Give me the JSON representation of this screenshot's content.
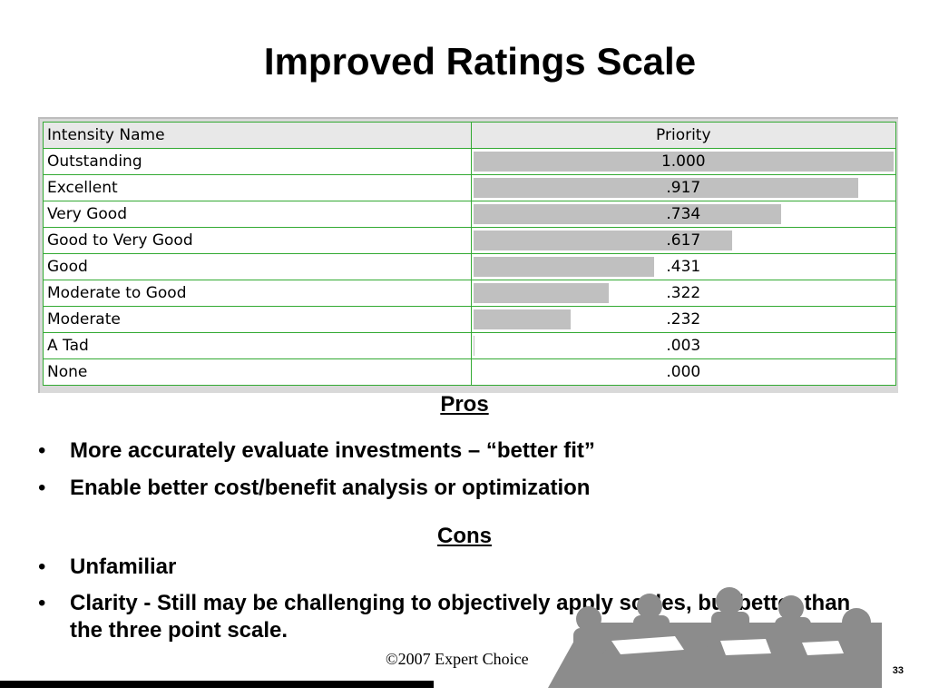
{
  "title": "Improved Ratings Scale",
  "table": {
    "headers": [
      "Intensity Name",
      "Priority"
    ],
    "rows": [
      {
        "name": "Outstanding",
        "priority": "1.000",
        "value": 1.0
      },
      {
        "name": "Excellent",
        "priority": ".917",
        "value": 0.917
      },
      {
        "name": "Very Good",
        "priority": ".734",
        "value": 0.734
      },
      {
        "name": "Good to Very Good",
        "priority": ".617",
        "value": 0.617
      },
      {
        "name": "Good",
        "priority": ".431",
        "value": 0.431
      },
      {
        "name": "Moderate to Good",
        "priority": ".322",
        "value": 0.322
      },
      {
        "name": "Moderate",
        "priority": ".232",
        "value": 0.232
      },
      {
        "name": "A Tad",
        "priority": ".003",
        "value": 0.003
      },
      {
        "name": "None",
        "priority": ".000",
        "value": 0.0
      }
    ]
  },
  "pros": {
    "heading": "Pros",
    "items": [
      "More accurately evaluate investments – “better fit”",
      "Enable better cost/benefit analysis or optimization"
    ]
  },
  "cons": {
    "heading": "Cons",
    "items": [
      "Unfamiliar",
      "Clarity - Still may be challenging to objectively apply scales, but better than the three point scale."
    ]
  },
  "footer": "©2007 Expert Choice",
  "page_number": "33",
  "colors": {
    "grid": "#33aa33",
    "bar": "#c0c0c0",
    "clipart": "#8c8c8c"
  }
}
